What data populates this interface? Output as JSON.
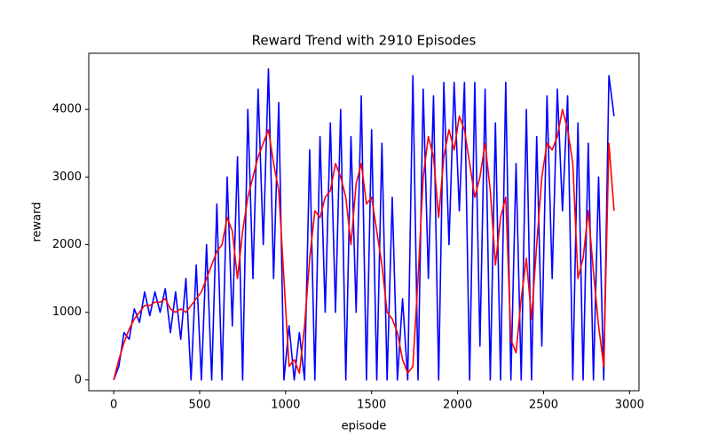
{
  "chart_data": {
    "type": "line",
    "title": "Reward Trend with 2910 Episodes",
    "x_label": "episode",
    "y_label": "reward",
    "x": [
      0,
      30,
      60,
      90,
      120,
      150,
      180,
      210,
      240,
      270,
      300,
      330,
      360,
      390,
      420,
      450,
      480,
      510,
      540,
      570,
      600,
      630,
      660,
      690,
      720,
      750,
      780,
      810,
      840,
      870,
      900,
      930,
      960,
      990,
      1020,
      1050,
      1080,
      1110,
      1140,
      1170,
      1200,
      1230,
      1260,
      1290,
      1320,
      1350,
      1380,
      1410,
      1440,
      1470,
      1500,
      1530,
      1560,
      1590,
      1620,
      1650,
      1680,
      1710,
      1740,
      1770,
      1800,
      1830,
      1860,
      1890,
      1920,
      1950,
      1980,
      2010,
      2040,
      2070,
      2100,
      2130,
      2160,
      2190,
      2220,
      2250,
      2280,
      2310,
      2340,
      2370,
      2400,
      2430,
      2460,
      2490,
      2520,
      2550,
      2580,
      2610,
      2640,
      2670,
      2700,
      2730,
      2760,
      2790,
      2820,
      2850,
      2880,
      2910
    ],
    "series": [
      {
        "color": "#0000ff",
        "values": [
          0,
          200,
          700,
          600,
          1050,
          850,
          1300,
          950,
          1300,
          1000,
          1350,
          700,
          1300,
          600,
          1500,
          0,
          1700,
          0,
          2000,
          0,
          2600,
          0,
          3000,
          800,
          3300,
          0,
          4000,
          1500,
          4300,
          2000,
          4600,
          1500,
          4100,
          0,
          800,
          0,
          700,
          0,
          3400,
          0,
          3600,
          1000,
          3800,
          1000,
          4000,
          0,
          3600,
          1000,
          4200,
          0,
          3700,
          0,
          3500,
          0,
          2700,
          0,
          1200,
          0,
          4500,
          0,
          4300,
          1500,
          4200,
          0,
          4400,
          2000,
          4400,
          2500,
          4400,
          0,
          4400,
          500,
          4300,
          0,
          3800,
          0,
          4400,
          0,
          3200,
          0,
          4000,
          0,
          3600,
          500,
          4200,
          1500,
          4300,
          2500,
          4200,
          0,
          3800,
          0,
          3500,
          0,
          3000,
          0,
          4500,
          3900
        ]
      },
      {
        "color": "#ff0000",
        "values": [
          0,
          300,
          550,
          750,
          900,
          1000,
          1100,
          1100,
          1150,
          1150,
          1200,
          1050,
          1000,
          1050,
          1000,
          1100,
          1200,
          1300,
          1500,
          1700,
          1900,
          2000,
          2400,
          2200,
          1500,
          2200,
          2700,
          3000,
          3300,
          3500,
          3700,
          3200,
          2800,
          1500,
          200,
          300,
          100,
          800,
          1800,
          2500,
          2400,
          2700,
          2800,
          3200,
          3000,
          2700,
          2000,
          2900,
          3200,
          2600,
          2700,
          2200,
          1700,
          1000,
          900,
          700,
          300,
          100,
          200,
          1500,
          3000,
          3600,
          3300,
          2400,
          3300,
          3700,
          3400,
          3900,
          3700,
          3200,
          2700,
          3000,
          3500,
          2800,
          1700,
          2400,
          2700,
          600,
          400,
          1200,
          1800,
          900,
          2000,
          3000,
          3500,
          3400,
          3600,
          4000,
          3700,
          3200,
          1500,
          1800,
          2500,
          1600,
          800,
          200,
          3500,
          2500
        ]
      }
    ],
    "xlim": [
      -145,
      3055
    ],
    "ylim": [
      -160,
      4830
    ],
    "xticks": [
      0,
      500,
      1000,
      1500,
      2000,
      2500,
      3000
    ],
    "yticks": [
      0,
      1000,
      2000,
      3000,
      4000
    ]
  }
}
